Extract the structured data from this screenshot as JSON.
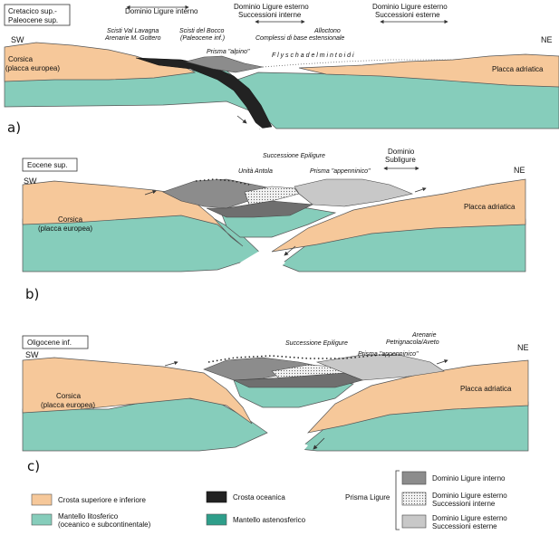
{
  "colors": {
    "crust": "#f6c89a",
    "lithospheric_mantle": "#86cdbb",
    "asthenospheric_mantle": "#2e9e8a",
    "oceanic_crust": "#222222",
    "ligure_interno": "#8c8c8c",
    "ligure_esterno_interne": "#e6e6e6",
    "ligure_esterno_esterne": "#c8c8c8"
  },
  "panel_a": {
    "letter": "a)",
    "age_box": [
      "Cretacico sup.-",
      "Paleocene sup."
    ],
    "sw": "SW",
    "ne": "NE",
    "corsica": [
      "Corsica",
      "(placca europea)"
    ],
    "placca_adriatica": "Placca adriatica",
    "dominio_interno": "Dominio Ligure interno",
    "dominio_esterno_interne": [
      "Dominio Ligure esterno",
      "Successioni interne"
    ],
    "dominio_esterno_esterne": [
      "Dominio Ligure esterno",
      "Successioni esterne"
    ],
    "scisti_lavagna": [
      "Scisti Val Lavagna",
      "Arenarie M. Gottero"
    ],
    "scisti_bocco": [
      "Scisti del Bocco",
      "(Paleocene inf.)"
    ],
    "prisma_alpino": "Prisma \"alpino\"",
    "complessi_base": "Complessi di base",
    "alloctono": [
      "Alloctono",
      "estensionale"
    ],
    "flysch": "F l y s c h   a d   e l m i n t o i d i"
  },
  "panel_b": {
    "letter": "b)",
    "age_box": "Eocene sup.",
    "sw": "SW",
    "ne": "NE",
    "corsica": [
      "Corsica",
      "(placca europea)"
    ],
    "placca_adriatica": "Placca adriatica",
    "successione_epiligure": "Successione Epiligure",
    "unita_antola": "Unità Antola",
    "prisma_appenninico": "Prisma \"appenninico\"",
    "dominio_subligure": [
      "Dominio",
      "Subligure"
    ]
  },
  "panel_c": {
    "letter": "c)",
    "age_box": "Oligocene inf.",
    "sw": "SW",
    "ne": "NE",
    "corsica": [
      "Corsica",
      "(placca europea)"
    ],
    "placca_adriatica": "Placca adriatica",
    "successione_epiligure": "Successione Epiligure",
    "prisma_appenninico": "Prisma \"appenninico\"",
    "arenarie": [
      "Arenarie",
      "Petrignacola/Aveto"
    ]
  },
  "legend": {
    "crosta": "Crosta superiore e inferiore",
    "mantello_lito": [
      "Mantello litosferico",
      "(oceanico e subcontinentale)"
    ],
    "crosta_oceanica": "Crosta oceanica",
    "mantello_asteno": "Mantello astenosferico",
    "prisma_ligure": "Prisma Ligure",
    "ligure_interno": "Dominio Ligure interno",
    "ligure_esterno_interne": [
      "Dominio Ligure esterno",
      "Successioni interne"
    ],
    "ligure_esterno_esterne": [
      "Dominio Ligure esterno",
      "Successioni esterne"
    ]
  }
}
